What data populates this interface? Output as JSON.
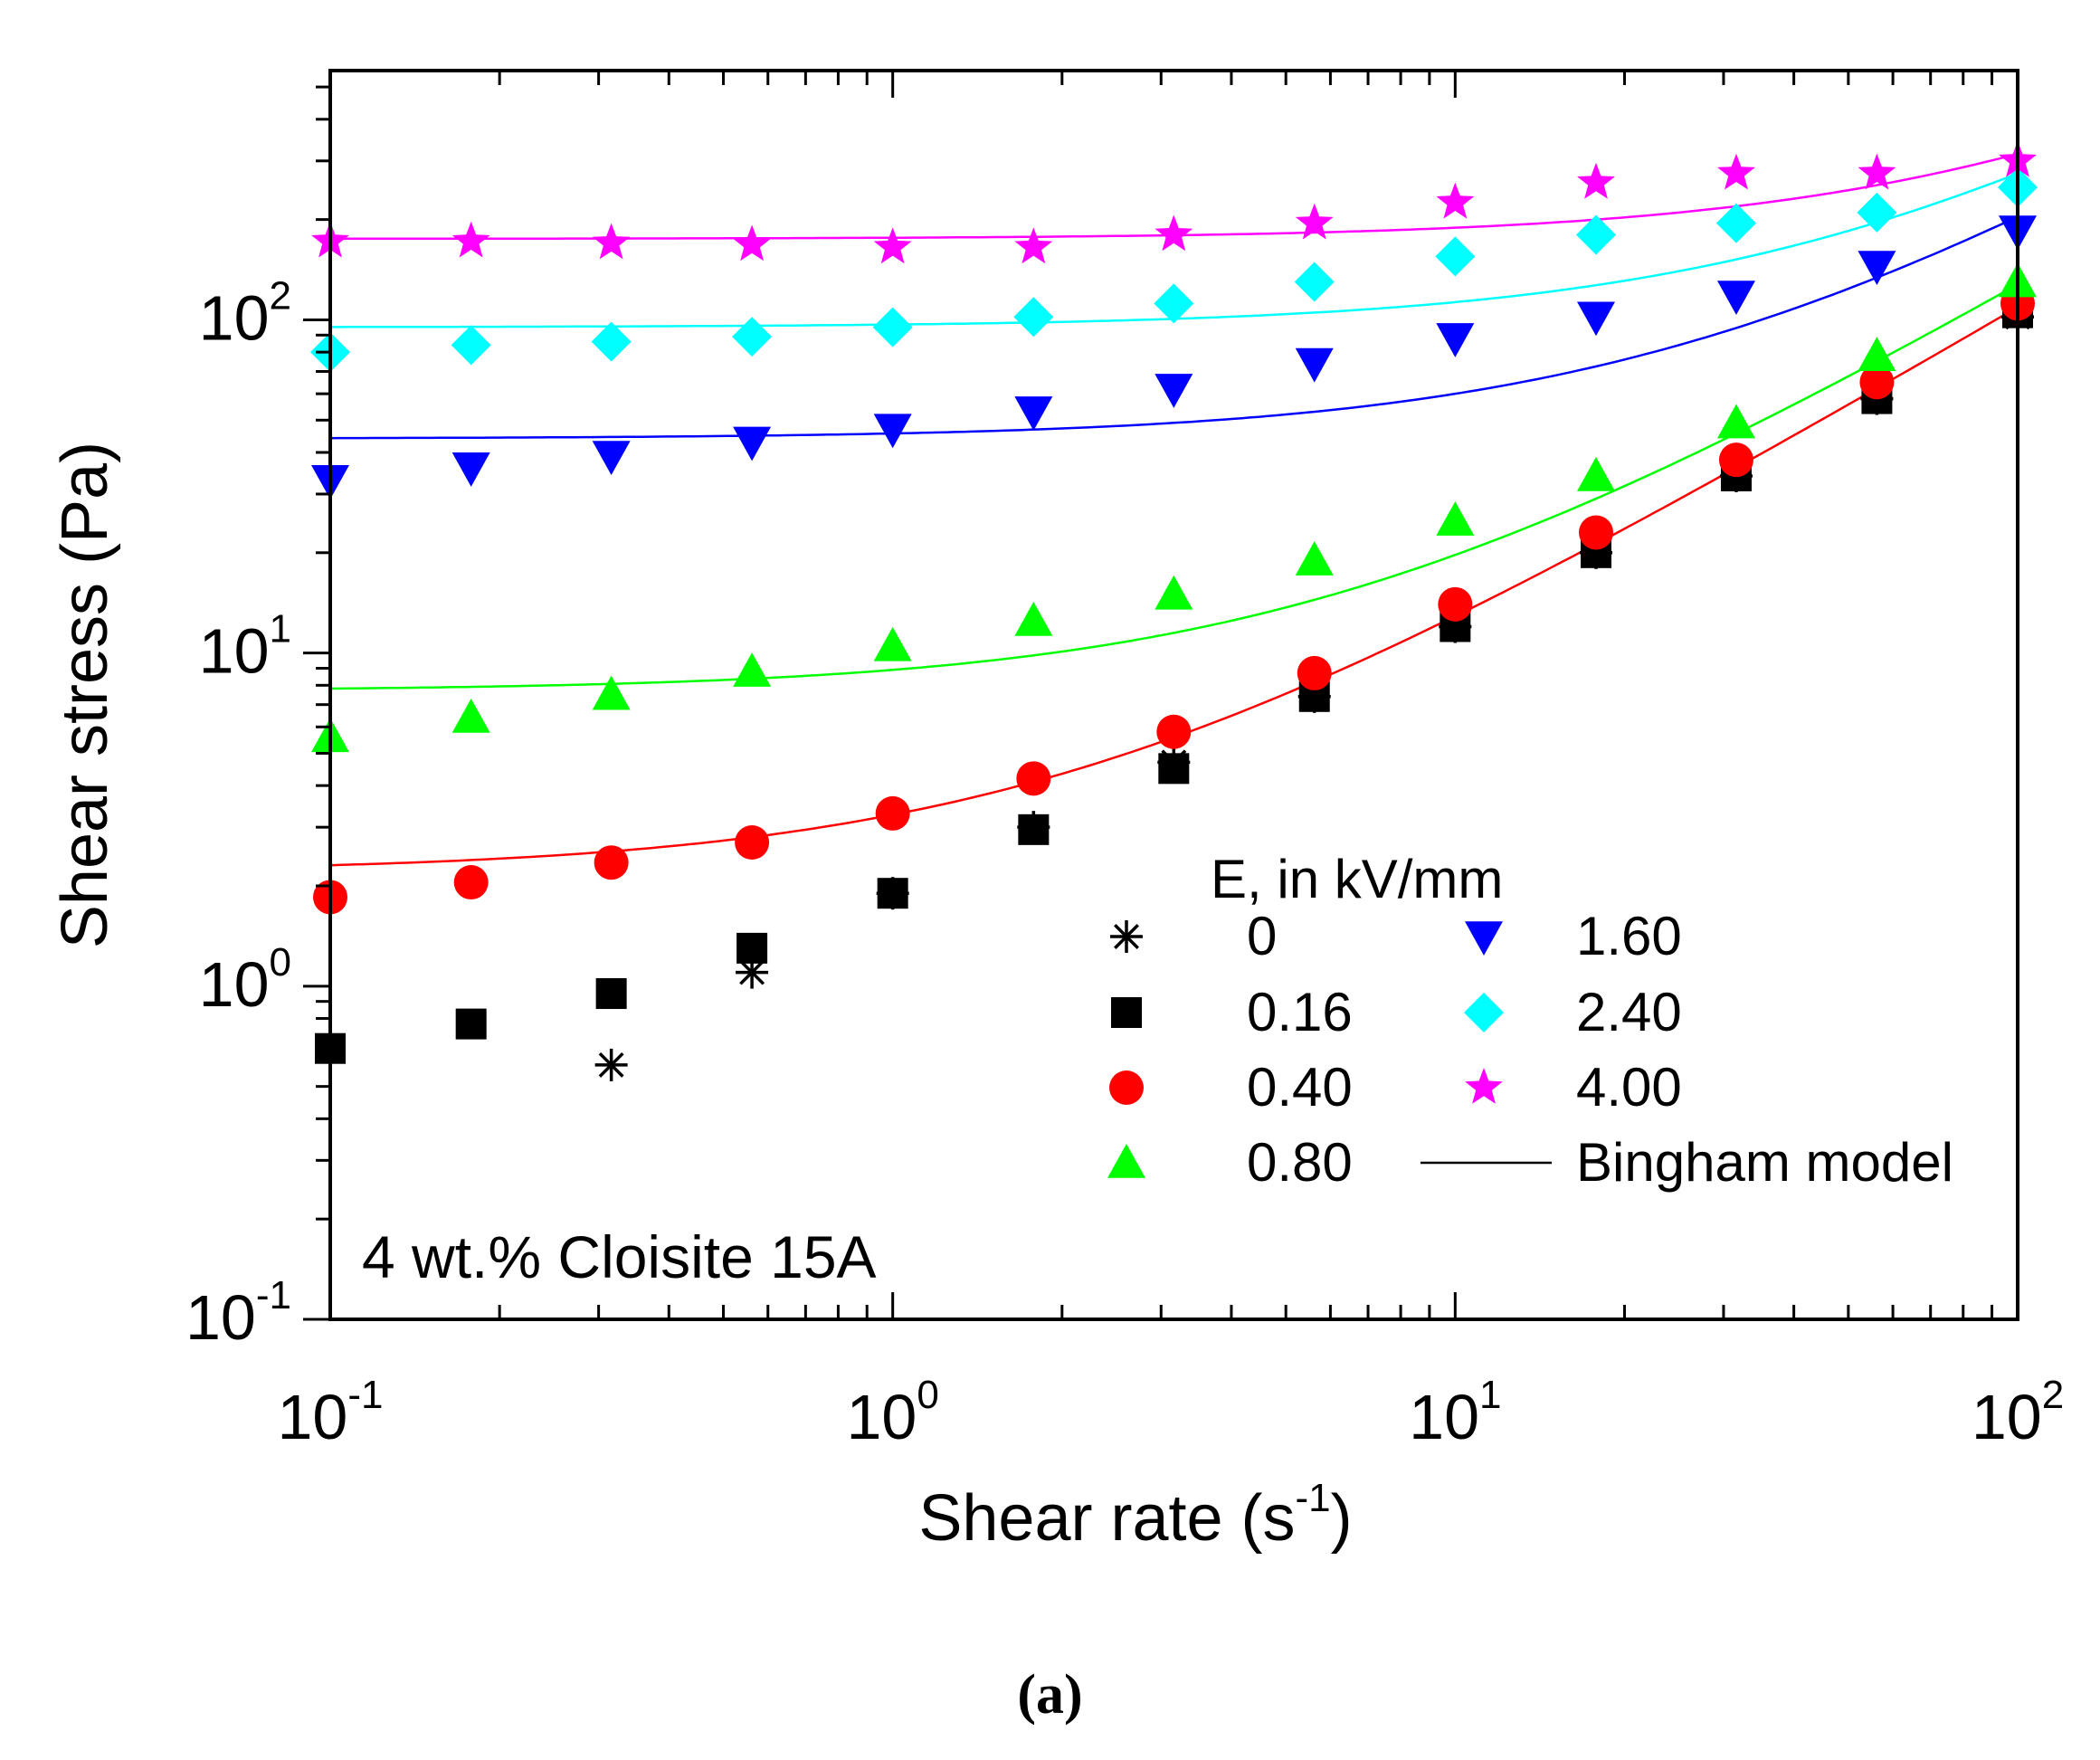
{
  "chart_data": {
    "type": "scatter",
    "x_scale": "log",
    "y_scale": "log",
    "xlabel_main": "Shear rate (s",
    "xlabel_sup": "-1",
    "xlabel_end": ")",
    "ylabel": "Shear stress (Pa)",
    "xlim": [
      0.1,
      100
    ],
    "ylim": [
      0.1,
      560
    ],
    "x_ticks": [
      {
        "value": 0.1,
        "base": "10",
        "exp": "-1"
      },
      {
        "value": 1,
        "base": "10",
        "exp": "0"
      },
      {
        "value": 10,
        "base": "10",
        "exp": "1"
      },
      {
        "value": 100,
        "base": "10",
        "exp": "2"
      }
    ],
    "y_ticks": [
      {
        "value": 0.1,
        "base": "10",
        "exp": "-1"
      },
      {
        "value": 1,
        "base": "10",
        "exp": "0"
      },
      {
        "value": 10,
        "base": "10",
        "exp": "1"
      },
      {
        "value": 100,
        "base": "10",
        "exp": "2"
      }
    ],
    "annotation": "4 wt.% Cloisite 15A",
    "legend_title": "E, in kV/mm",
    "legend_placement": "bottom-right",
    "model_label": "Bingham model",
    "series": [
      {
        "name": "0",
        "marker": "asterisk",
        "color": "#000000",
        "x": [
          0.316,
          0.562,
          1.0,
          1.78,
          3.16,
          5.62,
          10,
          17.8,
          31.6,
          56.2,
          100
        ],
        "y": [
          0.58,
          1.1,
          1.9,
          3.0,
          4.7,
          7.4,
          12.0,
          20.0,
          34.0,
          58.0,
          102.0
        ]
      },
      {
        "name": "0.16",
        "marker": "square",
        "color": "#000000",
        "x": [
          0.1,
          0.178,
          0.316,
          0.562,
          1.0,
          1.78,
          3.16,
          5.62,
          10,
          17.8,
          31.6,
          56.2,
          100
        ],
        "y": [
          0.65,
          0.77,
          0.95,
          1.3,
          1.9,
          2.95,
          4.5,
          7.4,
          12.0,
          20.0,
          34.0,
          58.0,
          105.0
        ]
      },
      {
        "name": "0.40",
        "marker": "circle",
        "color": "#ff0000",
        "x": [
          0.1,
          0.178,
          0.316,
          0.562,
          1.0,
          1.78,
          3.16,
          5.62,
          10,
          17.8,
          31.6,
          56.2,
          100
        ],
        "y": [
          1.85,
          2.05,
          2.35,
          2.7,
          3.3,
          4.2,
          5.8,
          8.7,
          14.0,
          23.0,
          38.0,
          65.0,
          112.0
        ]
      },
      {
        "name": "0.80",
        "marker": "triangle-up",
        "color": "#00ff00",
        "x": [
          0.1,
          0.178,
          0.316,
          0.562,
          1.0,
          1.78,
          3.16,
          5.62,
          10,
          17.8,
          31.6,
          56.2,
          100
        ],
        "y": [
          5.6,
          6.4,
          7.5,
          8.8,
          10.5,
          12.5,
          15.0,
          19.0,
          25.0,
          34.0,
          49.0,
          78.0,
          130.0
        ]
      },
      {
        "name": "1.60",
        "marker": "triangle-down",
        "color": "#0000ff",
        "x": [
          0.1,
          0.178,
          0.316,
          0.562,
          1.0,
          1.78,
          3.16,
          5.62,
          10,
          17.8,
          31.6,
          56.2,
          100
        ],
        "y": [
          33.0,
          36.0,
          39.0,
          43.0,
          47.0,
          53.0,
          62.0,
          74.0,
          88.0,
          102.0,
          118.0,
          145.0,
          185.0
        ]
      },
      {
        "name": "2.40",
        "marker": "diamond",
        "color": "#00ffff",
        "x": [
          0.1,
          0.178,
          0.316,
          0.562,
          1.0,
          1.78,
          3.16,
          5.62,
          10,
          17.8,
          31.6,
          56.2,
          100
        ],
        "y": [
          80.0,
          84.0,
          86.0,
          89.0,
          95.0,
          102.0,
          112.0,
          130.0,
          155.0,
          180.0,
          195.0,
          210.0,
          250.0
        ]
      },
      {
        "name": "4.00",
        "marker": "star",
        "color": "#ff00ff",
        "x": [
          0.1,
          0.178,
          0.316,
          0.562,
          1.0,
          1.78,
          3.16,
          5.62,
          10,
          17.8,
          31.6,
          56.2,
          100
        ],
        "y": [
          172.0,
          172.0,
          170.0,
          168.0,
          165.0,
          165.0,
          180.0,
          195.0,
          225.0,
          258.0,
          275.0,
          275.0,
          300.0
        ]
      }
    ],
    "bingham_fits": [
      {
        "series": "0.40",
        "color": "#ff0000",
        "tau0": 2.2,
        "eta": 1.07
      },
      {
        "series": "0.80",
        "color": "#00ff00",
        "tau0": 7.7,
        "eta": 1.2
      },
      {
        "series": "1.60",
        "color": "#0000ff",
        "tau0": 44.0,
        "eta": 1.6
      },
      {
        "series": "2.40",
        "color": "#00ffff",
        "tau0": 95.0,
        "eta": 1.8
      },
      {
        "series": "4.00",
        "color": "#ff00ff",
        "tau0": 175.0,
        "eta": 1.4
      }
    ]
  },
  "caption": "(a)"
}
